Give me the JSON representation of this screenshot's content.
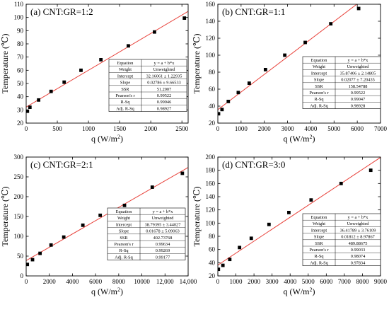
{
  "figure": {
    "panels": [
      {
        "title": "(a) CNT:GR=1:2",
        "stats": [
          [
            "Equation",
            "y = a + b*x"
          ],
          [
            "Weight",
            "Unweighted"
          ],
          [
            "Intercept",
            "32.16061 ± 1.22935"
          ],
          [
            "Slope",
            "0.02786 ± 9.66533"
          ],
          [
            "SSR",
            "51.2007"
          ],
          [
            "Pearson's r",
            "0.99522"
          ],
          [
            "R-Sq",
            "0.99046"
          ],
          [
            "Adj. R-Sq",
            "0.98927"
          ]
        ]
      },
      {
        "title": "(b) CNT:GR=1:1",
        "stats": [
          [
            "Equation",
            "y = a + b*x"
          ],
          [
            "Weight",
            "Unweighted"
          ],
          [
            "Intercept",
            "35.87406 ± 2.14805"
          ],
          [
            "Slope",
            "0.02077 ± 7.20435"
          ],
          [
            "SSR",
            "158.54788"
          ],
          [
            "Pearson's r",
            "0.99522"
          ],
          [
            "R-Sq",
            "0.99047"
          ],
          [
            "Adj. R-Sq",
            "0.98928"
          ]
        ]
      },
      {
        "title": "(c) CNT:GR=2:1",
        "stats": [
          [
            "Equation",
            "y = a + b*x"
          ],
          [
            "Weight",
            "Unweighted"
          ],
          [
            "Intercept",
            "38.79395 ± 3.44027"
          ],
          [
            "Slope",
            "0.01678 ± 5.09063"
          ],
          [
            "SSR",
            "402.73768"
          ],
          [
            "Pearson's r",
            "0.99634"
          ],
          [
            "R-Sq",
            "0.99269"
          ],
          [
            "Adj. R-Sq",
            "0.99177"
          ]
        ]
      },
      {
        "title": "(d) CNT:GR=3:0",
        "stats": [
          [
            "Equation",
            "y = a + b*x"
          ],
          [
            "Weight",
            "Unweighted"
          ],
          [
            "Intercept",
            "36.41789 ± 3.76109"
          ],
          [
            "Slope",
            "0.01812 ± 8.97867"
          ],
          [
            "SSR",
            "489.88675"
          ],
          [
            "Pearson's r",
            "0.99033"
          ],
          [
            "R-Sq",
            "0.98074"
          ],
          [
            "Adj. R-Sq",
            "0.97834"
          ]
        ]
      }
    ]
  },
  "chart_data": [
    {
      "type": "scatter",
      "title": "(a) CNT:GR=1:2",
      "xlabel": "q (W/m²)",
      "ylabel": "Temperature (℃)",
      "xlim": [
        0,
        2600
      ],
      "ylim": [
        20,
        110
      ],
      "xticks": [
        0,
        500,
        1000,
        1500,
        2000,
        2500
      ],
      "xtick_labels": [
        "0",
        "500",
        "1000",
        "1500",
        "2000",
        "2500"
      ],
      "yticks": [
        20,
        30,
        40,
        50,
        60,
        70,
        80,
        90,
        100,
        110
      ],
      "x": [
        20,
        60,
        200,
        400,
        610,
        880,
        1200,
        1640,
        2060,
        2540
      ],
      "y": [
        29,
        32,
        37.5,
        44,
        51,
        60,
        68,
        78.5,
        89,
        99.5
      ],
      "fit": {
        "intercept": 32.16061,
        "slope": 0.02786
      },
      "grid": false,
      "marker_color": "#000000",
      "fit_color": "#e8413a"
    },
    {
      "type": "scatter",
      "title": "(b) CNT:GR=1:1",
      "xlabel": "q (W/m²)",
      "ylabel": "Temperature (℃)",
      "xlim": [
        0,
        7000
      ],
      "ylim": [
        20,
        160
      ],
      "xticks": [
        0,
        1000,
        2000,
        3000,
        4000,
        5000,
        6000,
        7000
      ],
      "xtick_labels": [
        "0",
        "1000",
        "2000",
        "3000",
        "4000",
        "5000",
        "6000",
        "7000"
      ],
      "yticks": [
        20,
        40,
        60,
        80,
        100,
        120,
        140,
        160
      ],
      "x": [
        30,
        180,
        450,
        880,
        1350,
        2050,
        2880,
        3760,
        4860,
        6060
      ],
      "y": [
        31,
        36,
        45.5,
        56,
        67,
        83,
        100,
        115,
        137,
        155
      ],
      "fit": {
        "intercept": 35.87406,
        "slope": 0.02077
      },
      "grid": false,
      "marker_color": "#000000",
      "fit_color": "#e8413a"
    },
    {
      "type": "scatter",
      "title": "(c) CNT:GR=2:1",
      "xlabel": "q (W/m²)",
      "ylabel": "Temperature (℃)",
      "xlim": [
        0,
        14000
      ],
      "ylim": [
        0,
        300
      ],
      "xticks": [
        0,
        2000,
        4000,
        6000,
        8000,
        10000,
        12000,
        14000
      ],
      "xtick_labels": [
        "0",
        "2000",
        "4000",
        "6000",
        "8000",
        "10000",
        "12,000",
        "14,000"
      ],
      "yticks": [
        0,
        50,
        100,
        150,
        200,
        250,
        300
      ],
      "x": [
        100,
        550,
        1200,
        2150,
        3250,
        4900,
        6400,
        8500,
        10900,
        13500
      ],
      "y": [
        29,
        41,
        57,
        78,
        98,
        128,
        153,
        178,
        224,
        259
      ],
      "fit": {
        "intercept": 38.79395,
        "slope": 0.01678
      },
      "grid": false,
      "marker_color": "#000000",
      "fit_color": "#e8413a"
    },
    {
      "type": "scatter",
      "title": "(d) CNT:GR=3:0",
      "xlabel": "q (W/m²)",
      "ylabel": "Temperature (℃)",
      "xlim": [
        0,
        9000
      ],
      "ylim": [
        20,
        200
      ],
      "xticks": [
        0,
        1000,
        2000,
        3000,
        4000,
        5000,
        6000,
        7000,
        8000,
        9000
      ],
      "xtick_labels": [
        "0",
        "1000",
        "2000",
        "3000",
        "4000",
        "5000",
        "6000",
        "7000",
        "8000",
        "9000"
      ],
      "yticks": [
        20,
        40,
        60,
        80,
        100,
        120,
        140,
        160,
        180,
        200
      ],
      "x": [
        30,
        280,
        660,
        1200,
        1850,
        2830,
        3930,
        5160,
        6820,
        8460
      ],
      "y": [
        30,
        36,
        45,
        63,
        77,
        98,
        116,
        135,
        160,
        180
      ],
      "fit": {
        "intercept": 36.41789,
        "slope": 0.01812
      },
      "grid": false,
      "marker_color": "#000000",
      "fit_color": "#e8413a"
    }
  ]
}
